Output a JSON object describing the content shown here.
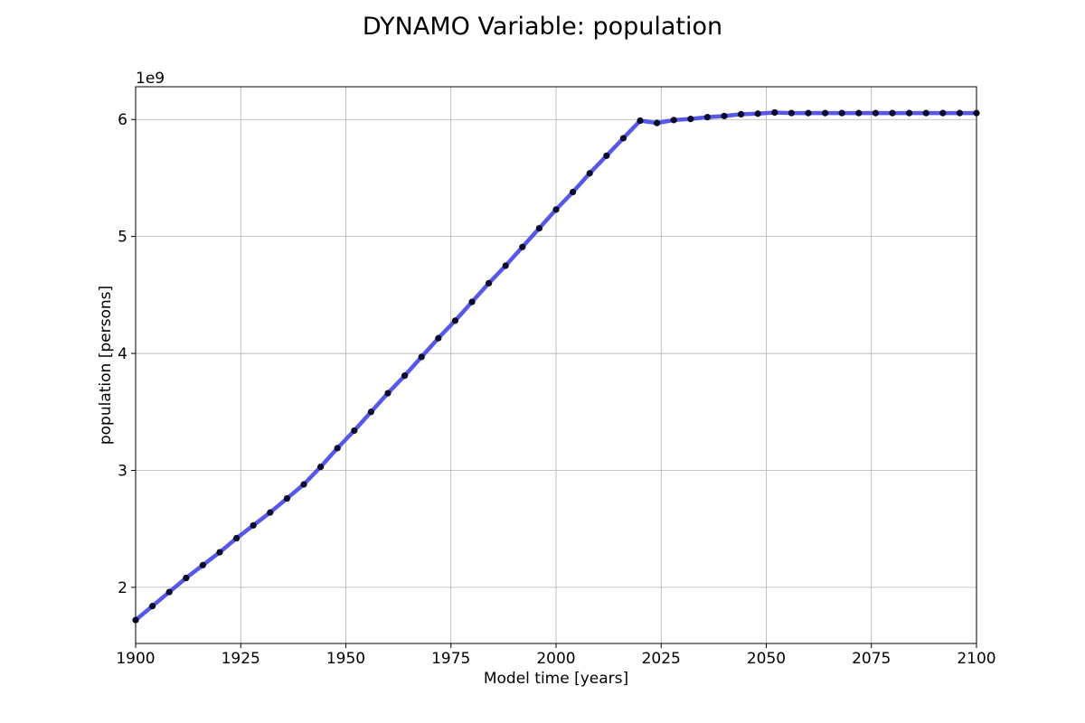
{
  "chart_data": {
    "type": "line",
    "title": "DYNAMO Variable: population",
    "xlabel": "Model time [years]",
    "ylabel": "population [persons]",
    "y_offset_label": "1e9",
    "y_scale": 1000000000,
    "xlim": [
      1900,
      2100
    ],
    "ylim": [
      1.52,
      6.28
    ],
    "x_ticks": [
      1900,
      1925,
      1950,
      1975,
      2000,
      2025,
      2050,
      2075,
      2100
    ],
    "x_tick_labels": [
      "1900",
      "1925",
      "1950",
      "1975",
      "2000",
      "2025",
      "2050",
      "2075",
      "2100"
    ],
    "y_ticks": [
      2,
      3,
      4,
      5,
      6
    ],
    "y_tick_labels": [
      "2",
      "3",
      "4",
      "5",
      "6"
    ],
    "grid": true,
    "line_color": "#4545e6",
    "marker_color": "#0a0a2e",
    "series": [
      {
        "x": [
          1900,
          1904,
          1908,
          1912,
          1916,
          1920,
          1924,
          1928,
          1932,
          1936,
          1940,
          1944,
          1948,
          1952,
          1956,
          1960,
          1964,
          1968,
          1972,
          1976,
          1980,
          1984,
          1988,
          1992,
          1996,
          2000,
          2004,
          2008,
          2012,
          2016,
          2020,
          2024,
          2028,
          2032,
          2036,
          2040,
          2044,
          2048,
          2052,
          2056,
          2060,
          2064,
          2068,
          2072,
          2076,
          2080,
          2084,
          2088,
          2092,
          2096,
          2100
        ],
        "y": [
          1.72,
          1.84,
          1.96,
          2.08,
          2.19,
          2.3,
          2.42,
          2.53,
          2.64,
          2.76,
          2.88,
          3.03,
          3.19,
          3.34,
          3.5,
          3.66,
          3.81,
          3.97,
          4.13,
          4.28,
          4.44,
          4.6,
          4.75,
          4.91,
          5.07,
          5.23,
          5.38,
          5.54,
          5.69,
          5.84,
          5.99,
          5.97,
          5.995,
          6.005,
          6.02,
          6.03,
          6.045,
          6.05,
          6.06,
          6.055,
          6.055,
          6.055,
          6.055,
          6.055,
          6.055,
          6.055,
          6.055,
          6.055,
          6.055,
          6.055,
          6.055
        ]
      }
    ]
  }
}
